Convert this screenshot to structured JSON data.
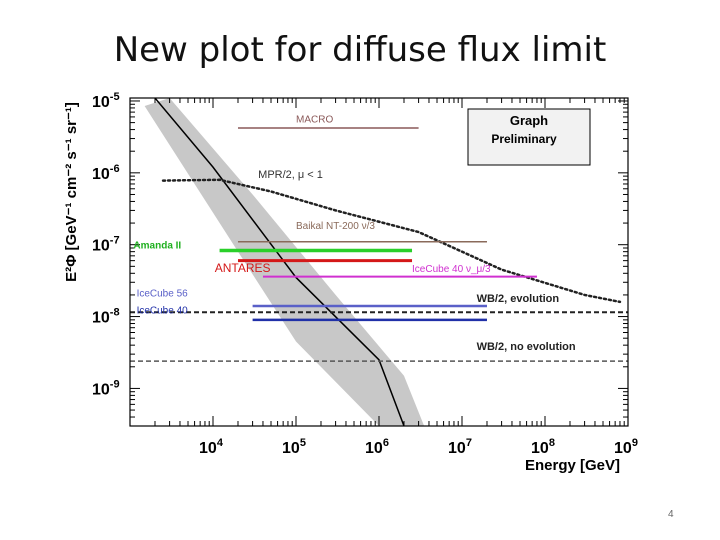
{
  "slide": {
    "title": "New plot for diffuse flux limit",
    "number": "4"
  },
  "chart_data": {
    "type": "line",
    "title": "",
    "xlabel": "Energy [GeV]",
    "ylabel": "E²Φ [GeV⁻¹ cm⁻² s⁻¹ sr⁻¹]",
    "xscale": "log",
    "yscale": "log",
    "xlim": [
      1000,
      1000000000
    ],
    "ylim": [
      3e-10,
      1.1e-05
    ],
    "grid": false,
    "x_ticks": [
      {
        "value": 10000,
        "base": "10",
        "exp": "4"
      },
      {
        "value": 100000,
        "base": "10",
        "exp": "5"
      },
      {
        "value": 1000000,
        "base": "10",
        "exp": "6"
      },
      {
        "value": 10000000,
        "base": "10",
        "exp": "7"
      },
      {
        "value": 100000000,
        "base": "10",
        "exp": "8"
      },
      {
        "value": 1000000000,
        "base": "10",
        "exp": "9"
      }
    ],
    "y_ticks": [
      {
        "value": 1e-05,
        "base": "10",
        "exp": "-5"
      },
      {
        "value": 1e-06,
        "base": "10",
        "exp": "-6"
      },
      {
        "value": 1e-07,
        "base": "10",
        "exp": "-7"
      },
      {
        "value": 1e-08,
        "base": "10",
        "exp": "-8"
      },
      {
        "value": 1e-09,
        "base": "10",
        "exp": "-9"
      }
    ],
    "legend_box": {
      "title": "Graph",
      "subtitle": "Preliminary",
      "placement": "top-right"
    },
    "atmospheric_band": {
      "color": "#c8c8c8",
      "lower": [
        [
          1500,
          8.5e-06
        ],
        [
          20000,
          8e-08
        ],
        [
          100000,
          4.5e-09
        ],
        [
          1000000,
          3e-10
        ]
      ],
      "upper": [
        [
          3000,
          1.1e-05
        ],
        [
          30000,
          5e-07
        ],
        [
          300000,
          2e-08
        ],
        [
          2000000,
          1.5e-09
        ],
        [
          3500000,
          3e-10
        ]
      ]
    },
    "atmospheric_central": {
      "color": "#000000",
      "points": [
        [
          2000,
          1.1e-05
        ],
        [
          10000,
          1.2e-06
        ],
        [
          100000,
          3.5e-08
        ],
        [
          1000000,
          2.5e-09
        ],
        [
          2000000,
          3e-10
        ]
      ]
    },
    "series": [
      {
        "name": "MACRO",
        "color": "#8a5858",
        "style": "solid",
        "width": 1.5,
        "x": [
          20000,
          3000000
        ],
        "y": [
          4.2e-06,
          4.2e-06
        ]
      },
      {
        "name": "MPR/2, μ < 1",
        "color": "#222222",
        "style": "dotted",
        "width": 2.5,
        "x": [
          2500,
          12000,
          50000,
          300000,
          3000000,
          10000000,
          30000000,
          300000000,
          800000000
        ],
        "y": [
          7.8e-07,
          8e-07,
          5.5e-07,
          3e-07,
          1.5e-07,
          8e-08,
          4.5e-08,
          2e-08,
          1.6e-08
        ]
      },
      {
        "name": "Baikal NT-200 ν/3",
        "color": "#8a6a5a",
        "style": "solid",
        "width": 1.5,
        "x": [
          20000,
          20000000
        ],
        "y": [
          1.1e-07,
          1.1e-07
        ]
      },
      {
        "name": "Amanda II",
        "color": "#2ad02a",
        "style": "solid",
        "width": 3.5,
        "x": [
          12000,
          200000,
          2500000
        ],
        "y": [
          8.3e-08,
          8.3e-08,
          8.3e-08
        ]
      },
      {
        "name": "ANTARES",
        "color": "#d41818",
        "style": "solid",
        "width": 3,
        "x": [
          20000,
          200000,
          2500000
        ],
        "y": [
          6e-08,
          6e-08,
          6e-08
        ]
      },
      {
        "name": "IceCube 40 ν_μ/3",
        "color": "#d030d0",
        "style": "solid",
        "width": 2,
        "x": [
          40000,
          80000000
        ],
        "y": [
          3.6e-08,
          3.6e-08
        ]
      },
      {
        "name": "IceCube 56",
        "color": "#5a60c8",
        "style": "solid",
        "width": 2.5,
        "x": [
          30000,
          300000,
          20000000
        ],
        "y": [
          1.4e-08,
          1.4e-08,
          1.4e-08
        ]
      },
      {
        "name": "IceCube 40",
        "color": "#2030a8",
        "style": "solid",
        "width": 2.5,
        "x": [
          30000,
          300000,
          20000000
        ],
        "y": [
          9e-09,
          9e-09,
          9e-09
        ]
      },
      {
        "name": "WB/2, evolution",
        "color": "#222222",
        "style": "dashed",
        "width": 2,
        "x": [
          1000,
          1000000000
        ],
        "y": [
          1.15e-08,
          1.15e-08
        ]
      },
      {
        "name": "WB/2, no evolution",
        "color": "#555555",
        "style": "dashed",
        "width": 1.5,
        "x": [
          1000,
          1000000000
        ],
        "y": [
          2.4e-09,
          2.4e-09
        ]
      }
    ],
    "annotations": [
      {
        "text": "MACRO",
        "x": 100000,
        "y": 5e-06,
        "color": "#8a5858",
        "weight": "normal",
        "size": 10
      },
      {
        "text": "MPR/2, μ < 1",
        "x": 35000,
        "y": 8.5e-07,
        "color": "#333333",
        "weight": "normal",
        "size": 11
      },
      {
        "text": "Baikal NT-200 ν/3",
        "x": 100000,
        "y": 1.65e-07,
        "color": "#8a6a5a",
        "weight": "normal",
        "size": 10
      },
      {
        "text": "Amanda II",
        "x": 1100,
        "y": 8.8e-08,
        "color": "#20b020",
        "weight": "bold",
        "size": 10
      },
      {
        "text": "ANTARES",
        "x": 10500,
        "y": 4.2e-08,
        "color": "#d41818",
        "weight": "normal",
        "size": 12
      },
      {
        "text": "IceCube 40 ν_μ/3",
        "x": 2500000,
        "y": 4.2e-08,
        "color": "#d030d0",
        "weight": "normal",
        "size": 10
      },
      {
        "text": "IceCube 56",
        "x": 1200,
        "y": 1.9e-08,
        "color": "#5a60c8",
        "weight": "normal",
        "size": 10
      },
      {
        "text": "IceCube 40",
        "x": 1200,
        "y": 1.1e-08,
        "color": "#2030a8",
        "weight": "normal",
        "size": 10
      },
      {
        "text": "WB/2, evolution",
        "x": 15000000,
        "y": 1.6e-08,
        "color": "#222222",
        "weight": "bold",
        "size": 11
      },
      {
        "text": "WB/2, no evolution",
        "x": 15000000,
        "y": 3.4e-09,
        "color": "#222222",
        "weight": "bold",
        "size": 11
      }
    ]
  }
}
